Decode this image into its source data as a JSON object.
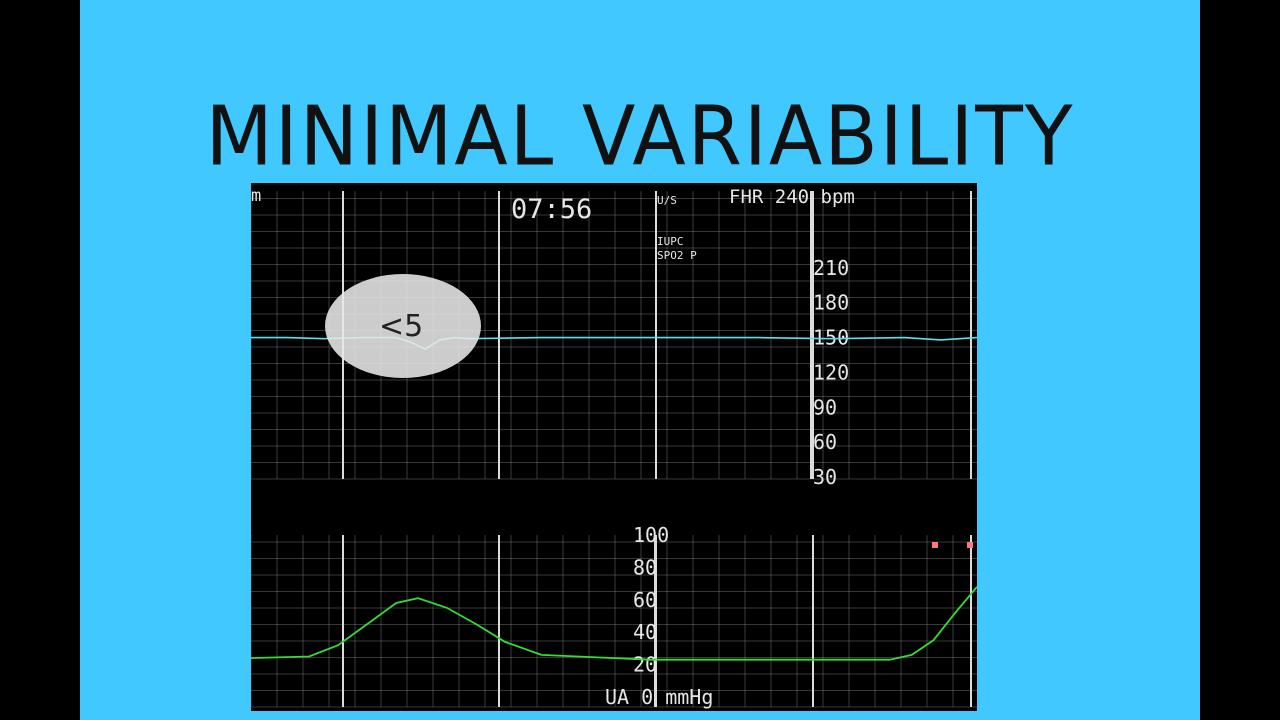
{
  "title": "MINIMAL VARIABILITY",
  "monitor": {
    "left_marker": "m",
    "time": "07:56",
    "indicator_us": "U/S",
    "indicator_iupc": "IUPC",
    "indicator_spo2": "SPO2 P",
    "fhr_label": "FHR 240 bpm",
    "ua_label": "UA 0 mmHg",
    "annotation": "<5",
    "colors": {
      "fhr": "#5fe0e8",
      "ua": "#33dd33",
      "grid": "#888888",
      "bubble": "#e8e8e8"
    }
  },
  "chart_data": [
    {
      "type": "line",
      "title": "",
      "ylabel": "FHR 240 bpm",
      "yticks": [
        30,
        60,
        90,
        120,
        150,
        180,
        210,
        240
      ],
      "ylim": [
        30,
        240
      ],
      "series": [
        {
          "x": [
            0,
            5,
            10,
            15,
            20,
            22,
            24,
            26,
            28,
            30,
            40,
            50,
            60,
            70,
            80,
            90,
            95,
            100
          ],
          "values": [
            150,
            150,
            149,
            150,
            150,
            146,
            140,
            148,
            150,
            149,
            150,
            150,
            150,
            150,
            149,
            150,
            148,
            150
          ]
        }
      ],
      "annotations": [
        "<5"
      ]
    },
    {
      "type": "line",
      "title": "",
      "ylabel": "UA 0 mmHg",
      "yticks": [
        20,
        40,
        60,
        80,
        100
      ],
      "ylim": [
        0,
        100
      ],
      "series": [
        {
          "x": [
            0,
            8,
            12,
            16,
            20,
            23,
            27,
            31,
            35,
            40,
            50,
            55,
            60,
            70,
            80,
            88,
            91,
            94,
            97,
            100
          ],
          "values": [
            24,
            25,
            32,
            45,
            58,
            61,
            55,
            45,
            34,
            26,
            24,
            23,
            23,
            23,
            23,
            23,
            26,
            35,
            52,
            68
          ]
        }
      ]
    }
  ]
}
